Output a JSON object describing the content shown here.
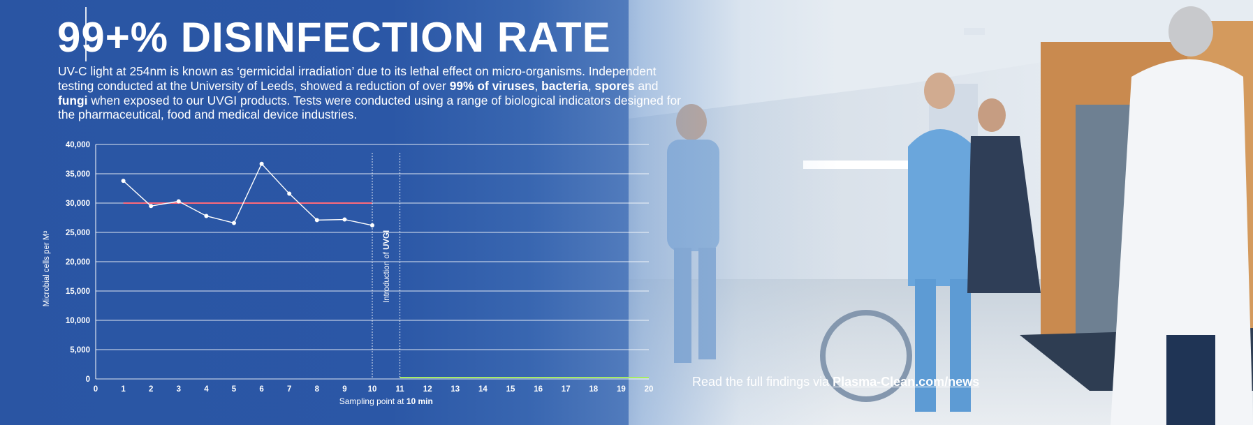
{
  "headline": "99+% DISINFECTION RATE",
  "intro": {
    "p1": "UV-C light at 254nm is known as ‘germicidal irradiation’ due to its lethal effect on micro-organisms. Independent testing conducted at the University of Leeds, showed a reduction of over ",
    "b1": "99% of viruses",
    "p2": ", ",
    "b2": "bacteria",
    "p3": ", ",
    "b3": "spores",
    "p4": " and ",
    "b4": "fungi",
    "p5": " when exposed to our UVGI products. Tests were conducted using a range of biological indicators designed for the pharmaceutical, food and medical device industries."
  },
  "findings": {
    "text": "Read the full findings via ",
    "link": "Plasma-Clean.com/news"
  },
  "colors": {
    "background_blue": "#2b56a4",
    "before_band": "#d2344a",
    "after_band": "#7ed13e"
  },
  "chart_data": {
    "type": "line",
    "x": [
      1,
      2,
      3,
      4,
      5,
      6,
      7,
      8,
      9,
      10
    ],
    "values": [
      33800,
      29500,
      30300,
      27800,
      26600,
      36700,
      31600,
      27100,
      27200,
      26200
    ],
    "xticks": [
      "0",
      "1",
      "2",
      "3",
      "4",
      "5",
      "6",
      "7",
      "8",
      "9",
      "10",
      "11",
      "12",
      "13",
      "14",
      "15",
      "16",
      "17",
      "18",
      "19",
      "20"
    ],
    "yticks": [
      "0",
      "5,000",
      "10,000",
      "15,000",
      "20,000",
      "25,000",
      "30,000",
      "35,000",
      "40,000"
    ],
    "xlim": [
      0,
      20
    ],
    "ylim": [
      0,
      40000
    ],
    "ylabel": "Microbial cells per M³",
    "xlabel_prefix": "Sampling point at ",
    "xlabel_bold": "10 min",
    "annotation": {
      "prefix": "Introduction of ",
      "bold": "UVGI"
    },
    "before_band": {
      "x": [
        1,
        10
      ],
      "y": 30000
    },
    "after_band": {
      "x": [
        11,
        20
      ],
      "y": 0
    },
    "dashed_lines_x": [
      10,
      11
    ],
    "grid": true
  }
}
